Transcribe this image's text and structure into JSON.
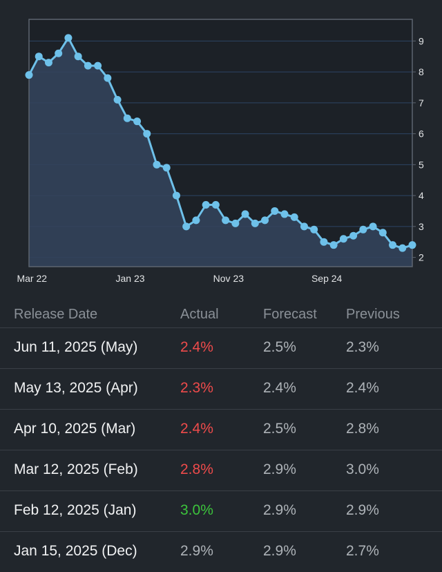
{
  "chart_data": {
    "type": "area",
    "x_tick_labels": [
      "Mar 22",
      "Jan 23",
      "Nov 23",
      "Sep 24"
    ],
    "y_ticks": [
      2,
      3,
      4,
      5,
      6,
      7,
      8,
      9
    ],
    "ylim": [
      1.7,
      9.7
    ],
    "grid": true,
    "values": [
      7.9,
      8.5,
      8.3,
      8.6,
      9.1,
      8.5,
      8.2,
      8.2,
      7.8,
      7.1,
      6.5,
      6.4,
      6.0,
      5.0,
      4.9,
      4.0,
      3.0,
      3.2,
      3.7,
      3.7,
      3.2,
      3.1,
      3.4,
      3.1,
      3.2,
      3.5,
      3.4,
      3.3,
      3.0,
      2.9,
      2.5,
      2.4,
      2.6,
      2.7,
      2.9,
      3.0,
      2.8,
      2.4,
      2.3,
      2.4
    ],
    "line_color": "#6ec1ea",
    "fill_color": "#33435b"
  },
  "table": {
    "headers": {
      "release_date": "Release Date",
      "actual": "Actual",
      "forecast": "Forecast",
      "previous": "Previous"
    },
    "rows": [
      {
        "date": "Jun 11, 2025 (May)",
        "actual": "2.4%",
        "actual_status": "neg",
        "forecast": "2.5%",
        "previous": "2.3%"
      },
      {
        "date": "May 13, 2025 (Apr)",
        "actual": "2.3%",
        "actual_status": "neg",
        "forecast": "2.4%",
        "previous": "2.4%"
      },
      {
        "date": "Apr 10, 2025 (Mar)",
        "actual": "2.4%",
        "actual_status": "neg",
        "forecast": "2.5%",
        "previous": "2.8%"
      },
      {
        "date": "Mar 12, 2025 (Feb)",
        "actual": "2.8%",
        "actual_status": "neg",
        "forecast": "2.9%",
        "previous": "3.0%"
      },
      {
        "date": "Feb 12, 2025 (Jan)",
        "actual": "3.0%",
        "actual_status": "pos",
        "forecast": "2.9%",
        "previous": "2.9%"
      },
      {
        "date": "Jan 15, 2025 (Dec)",
        "actual": "2.9%",
        "actual_status": "neu",
        "forecast": "2.9%",
        "previous": "2.7%"
      }
    ]
  },
  "colors": {
    "background": "#21262c",
    "plot_background": "#1c2127",
    "negative": "#ef4b4b",
    "positive": "#3cc43c",
    "neutral": "#aeb3b8"
  }
}
